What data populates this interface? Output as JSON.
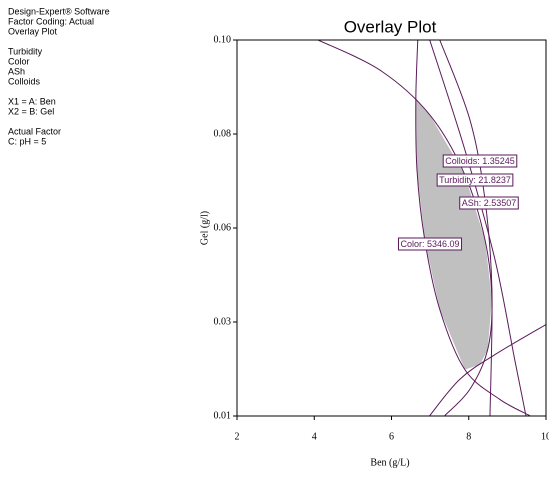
{
  "info_panel": [
    [
      "Design-Expert® Software",
      "Factor Coding: Actual",
      "Overlay Plot"
    ],
    [
      "Turbidity",
      "Color",
      "ASh",
      "Colloids"
    ],
    [
      "X1 = A: Ben",
      "X2 = B: Gel"
    ],
    [
      "Actual Factor",
      "C: pH = 5"
    ]
  ],
  "chart_data": {
    "type": "overlay",
    "title": "Overlay Plot",
    "x_label": "Ben (g/L)",
    "y_label": "Gel (g/l)",
    "xlim": [
      2,
      10
    ],
    "xticks": [
      2,
      4,
      6,
      8,
      10
    ],
    "ylim": [
      0.01,
      0.1
    ],
    "yticks": [
      {
        "value": 0.01,
        "label": "0.01"
      },
      {
        "value": 0.0325,
        "label": "0.03"
      },
      {
        "value": 0.055,
        "label": "0.06"
      },
      {
        "value": 0.0775,
        "label": "0.08"
      },
      {
        "value": 0.1,
        "label": "0.10"
      }
    ],
    "line_color": "#5a1a5a",
    "region_color": "#c0c0c0",
    "region": {
      "x": [
        6.63,
        6.66,
        6.86,
        7.25,
        7.9,
        8.29,
        8.49,
        8.6,
        8.42,
        7.9,
        6.99
      ],
      "y": [
        0.0861,
        0.0689,
        0.0522,
        0.0355,
        0.0211,
        0.0223,
        0.0259,
        0.0379,
        0.0522,
        0.0677,
        0.0821
      ]
    },
    "series": [
      {
        "label": "Color: 5346.09",
        "x": [
          4.1,
          5.7,
          6.99,
          7.9,
          8.42,
          8.6,
          8.49,
          8.03,
          7.38
        ],
        "y": [
          0.1,
          0.0928,
          0.0821,
          0.0677,
          0.0522,
          0.0379,
          0.0259,
          0.0164,
          0.0101
        ]
      },
      {
        "label": "Colloids: 1.35245",
        "x": [
          6.68,
          6.63,
          6.66,
          6.86,
          7.25,
          7.9,
          8.8,
          9.58
        ],
        "y": [
          0.1,
          0.0857,
          0.0689,
          0.0522,
          0.0355,
          0.0211,
          0.014,
          0.0101
        ]
      },
      {
        "label": "Turbidity: 21.8237",
        "x": [
          6.99,
          7.9,
          8.68,
          9.19,
          9.48
        ],
        "y": [
          0.1,
          0.0737,
          0.0474,
          0.0235,
          0.0101
        ]
      },
      {
        "label": "ASh: 2.53507",
        "x": [
          7.25,
          8.03,
          8.42,
          8.6,
          8.55
        ],
        "y": [
          0.1,
          0.0809,
          0.0618,
          0.0402,
          0.0101
        ]
      },
      {
        "label": null,
        "x": [
          6.99,
          7.77,
          8.68,
          10.0
        ],
        "y": [
          0.0101,
          0.0188,
          0.0247,
          0.0319
        ]
      }
    ]
  }
}
